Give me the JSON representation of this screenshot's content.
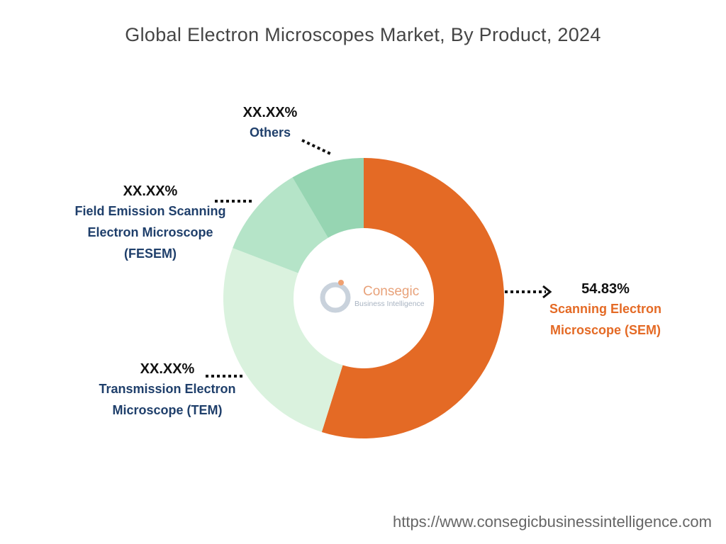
{
  "chart_data": {
    "type": "pie",
    "title": "Global Electron Microscopes Market, By Product, 2024",
    "categories": [
      "Scanning Electron Microscope (SEM)",
      "Transmission Electron Microscope (TEM)",
      "Field Emission Scanning Electron Microscope (FESEM)",
      "Others"
    ],
    "values": [
      54.83,
      26.0,
      10.7,
      8.47
    ],
    "value_labels": [
      "54.83%",
      "XX.XX%",
      "XX.XX%",
      "XX.XX%"
    ],
    "colors": [
      "#e46a25",
      "#daf2de",
      "#b5e4c8",
      "#96d5b2"
    ],
    "label_colors": [
      "#e46a25",
      "#1f3f6b",
      "#1f3f6b",
      "#1f3f6b"
    ],
    "logo": {
      "name": "Consegic",
      "tagline": "Business Intelligence"
    },
    "source_url": "https://www.consegicbusinessintelligence.com"
  }
}
